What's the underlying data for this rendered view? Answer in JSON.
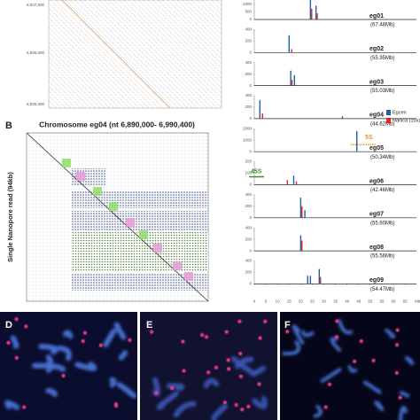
{
  "panel_a": {
    "tick_labels": [
      "6,937,500",
      "6,936,000",
      "6,935,000"
    ]
  },
  "panel_b": {
    "label": "B",
    "title": "Chromosome eg04 (nt 6,890,000- 6,990,400)",
    "y_label": "Single Nanopore read (94kb)"
  },
  "panel_labels": {
    "d": "D",
    "e": "E",
    "f": "F"
  },
  "chart_data": [
    {
      "type": "spike",
      "title": "eg01",
      "subtitle": "(67.48Mb)",
      "x": [
        24.2,
        26.6
      ],
      "xlim": [
        0,
        68
      ],
      "ylim": [
        0,
        1500
      ],
      "yticks": [
        0,
        500,
        1000,
        1500
      ],
      "series": [
        {
          "name": "Egcen",
          "color": "#1f5fa8",
          "values": [
            1500,
            900
          ]
        },
        {
          "name": "Nanica (10x)",
          "color": "#e0262b",
          "values": [
            700,
            400
          ]
        }
      ]
    },
    {
      "type": "spike",
      "title": "eg02",
      "subtitle": "(55.95Mb)",
      "x": [
        15.0,
        15.6
      ],
      "xlim": [
        0,
        68
      ],
      "ylim": [
        0,
        400
      ],
      "yticks": [
        0,
        200,
        400
      ],
      "series": [
        {
          "name": "Egcen",
          "color": "#1f5fa8",
          "values": [
            300,
            null
          ]
        },
        {
          "name": "Nanica (10x)",
          "color": "#e0262b",
          "values": [
            null,
            60
          ]
        }
      ]
    },
    {
      "type": "spike",
      "title": "eg03",
      "subtitle": "(55.03Mb)",
      "x": [
        15.7,
        17.3
      ],
      "xlim": [
        0,
        68
      ],
      "ylim": [
        0,
        400
      ],
      "yticks": [
        0,
        200,
        400
      ],
      "series": [
        {
          "name": "Egcen",
          "color": "#1f5fa8",
          "values": [
            260,
            180
          ]
        },
        {
          "name": "Nanica (10x)",
          "color": "#e0262b",
          "values": [
            100,
            null
          ]
        }
      ]
    },
    {
      "type": "spike",
      "title": "eg04",
      "subtitle": "(44.62Mb)",
      "x": [
        2.4,
        3.0,
        38.0
      ],
      "xlim": [
        0,
        68
      ],
      "ylim": [
        0,
        400
      ],
      "yticks": [
        0,
        200,
        400
      ],
      "series": [
        {
          "name": "Egcen",
          "color": "#1f5fa8",
          "values": [
            320,
            null,
            40
          ]
        },
        {
          "name": "Nanica (10x)",
          "color": "#e0262b",
          "values": [
            null,
            90,
            null
          ]
        }
      ]
    },
    {
      "type": "spike",
      "title": "eg05",
      "subtitle": "(50.34Mb)",
      "annotation": "5S",
      "annotation_color": "#e8901a",
      "x": [
        44.2
      ],
      "xlim": [
        0,
        68
      ],
      "ylim": [
        0,
        2000
      ],
      "yticks": [
        0,
        1000,
        2000
      ],
      "series": [
        {
          "name": "Egcen",
          "color": "#1f5fa8",
          "values": [
            1800
          ]
        },
        {
          "name": "Nanica (10x)",
          "color": "#e0262b",
          "values": [
            null
          ]
        }
      ]
    },
    {
      "type": "spike",
      "title": "eg06",
      "subtitle": "(42.46Mb)",
      "annotation": "45S",
      "annotation_color": "#3f8f2a",
      "x": [
        13.7,
        17.0,
        17.6
      ],
      "xlim": [
        0,
        68
      ],
      "ylim": [
        0,
        200
      ],
      "yticks": [
        0,
        100,
        200
      ],
      "series": [
        {
          "name": "Egcen",
          "color": "#1f5fa8",
          "values": [
            null,
            80,
            null
          ]
        },
        {
          "name": "Nanica (10x)",
          "color": "#e0262b",
          "values": [
            40,
            null,
            30
          ]
        }
      ]
    },
    {
      "type": "spike",
      "title": "eg07",
      "subtitle": "(55.60Mb)",
      "x": [
        20.0,
        21.8
      ],
      "xlim": [
        0,
        68
      ],
      "ylim": [
        0,
        400
      ],
      "yticks": [
        0,
        200,
        400
      ],
      "series": [
        {
          "name": "Egcen",
          "color": "#1f5fa8",
          "values": [
            350,
            130
          ]
        },
        {
          "name": "Nanica (10x)",
          "color": "#e0262b",
          "values": [
            200,
            null
          ]
        }
      ]
    },
    {
      "type": "spike",
      "title": "eg08",
      "subtitle": "(55.56Mb)",
      "x": [
        20.0
      ],
      "xlim": [
        0,
        68
      ],
      "ylim": [
        0,
        400
      ],
      "yticks": [
        0,
        200,
        400
      ],
      "series": [
        {
          "name": "Egcen",
          "color": "#1f5fa8",
          "values": [
            270
          ]
        },
        {
          "name": "Nanica (10x)",
          "color": "#e0262b",
          "values": [
            180
          ]
        }
      ]
    },
    {
      "type": "spike",
      "title": "eg09",
      "subtitle": "(54.47Mb)",
      "x": [
        23.0,
        24.2,
        28.0
      ],
      "xlim": [
        0,
        68
      ],
      "ylim": [
        0,
        400
      ],
      "yticks": [
        0,
        200,
        400
      ],
      "xticks": [
        0,
        5,
        10,
        15,
        20,
        25,
        30,
        35,
        40,
        45,
        50,
        55,
        60,
        65
      ],
      "x_label": "Mb",
      "series": [
        {
          "name": "Egcen",
          "color": "#1f5fa8",
          "values": [
            140,
            140,
            260
          ]
        },
        {
          "name": "Nanica (10x)",
          "color": "#e0262b",
          "values": [
            null,
            null,
            120
          ]
        }
      ]
    }
  ]
}
